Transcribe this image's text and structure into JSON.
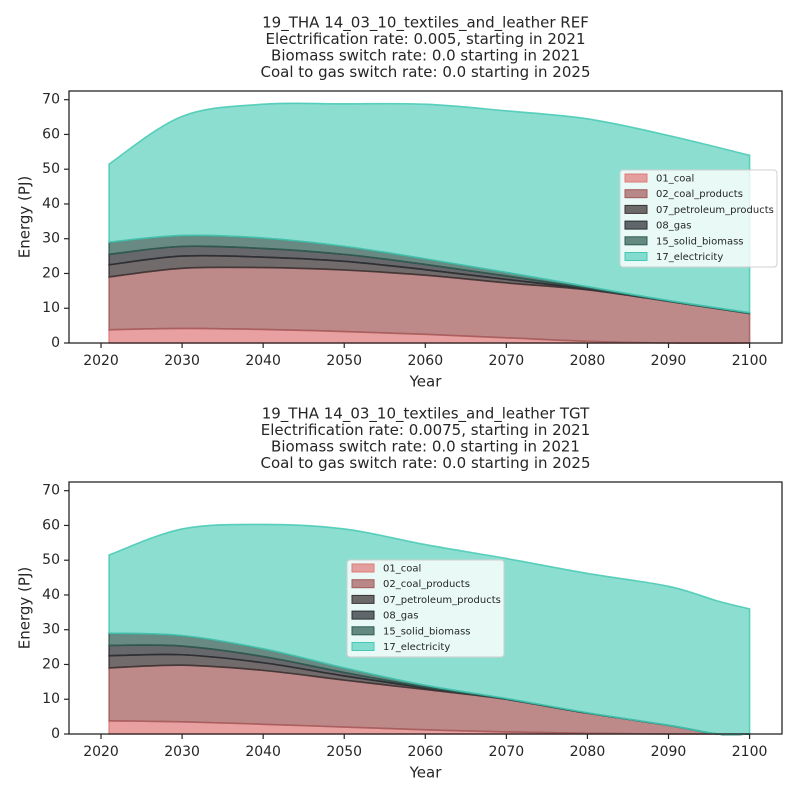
{
  "figure": {},
  "colors": {
    "01_coal": "#e07b7b",
    "02_coal_products": "#a35c5c",
    "07_petroleum_products": "#3a3232",
    "08_gas": "#2b2e33",
    "15_solid_biomass": "#2f5d52",
    "17_electricity": "#45c9b4"
  },
  "chart_data": [
    {
      "type": "area",
      "stacked": true,
      "title_lines": [
        "19_THA 14_03_10_textiles_and_leather REF",
        "Electrification rate: 0.005, starting in 2021",
        "Biomass switch rate: 0.0 starting in 2021",
        "Coal to gas switch rate: 0.0 starting in 2025"
      ],
      "xlabel": "Year",
      "ylabel": "Energy (PJ)",
      "xlim": [
        2021,
        2100
      ],
      "ylim": [
        0,
        72.5
      ],
      "xticks": [
        2020,
        2030,
        2040,
        2050,
        2060,
        2070,
        2080,
        2090,
        2100
      ],
      "yticks": [
        0,
        10,
        20,
        30,
        40,
        50,
        60,
        70
      ],
      "legend_position": "right",
      "x": [
        2021,
        2030,
        2040,
        2050,
        2060,
        2070,
        2080,
        2090,
        2100
      ],
      "series": [
        {
          "name": "01_coal",
          "values": [
            3.8,
            4.2,
            3.9,
            3.3,
            2.5,
            1.5,
            0.5,
            0,
            0
          ]
        },
        {
          "name": "02_coal_products",
          "values": [
            15.2,
            17.3,
            17.8,
            17.7,
            17.0,
            15.8,
            14.8,
            12.0,
            8.5
          ]
        },
        {
          "name": "07_petroleum_products",
          "values": [
            3.5,
            3.5,
            3.0,
            2.5,
            1.6,
            1.0,
            0.2,
            0,
            0
          ]
        },
        {
          "name": "08_gas",
          "values": [
            3.0,
            2.8,
            2.5,
            2.0,
            1.5,
            1.0,
            0.3,
            0,
            0
          ]
        },
        {
          "name": "15_solid_biomass",
          "values": [
            3.5,
            3.1,
            3.0,
            2.3,
            1.6,
            1.0,
            0.4,
            0.2,
            0.2
          ]
        },
        {
          "name": "17_electricity",
          "values": [
            22.5,
            34.3,
            38.5,
            41.0,
            44.5,
            46.5,
            48.3,
            47.5,
            45.3
          ]
        }
      ]
    },
    {
      "type": "area",
      "stacked": true,
      "title_lines": [
        "19_THA 14_03_10_textiles_and_leather TGT",
        "Electrification rate: 0.0075, starting in 2021",
        "Biomass switch rate: 0.0 starting in 2021",
        "Coal to gas switch rate: 0.0 starting in 2025"
      ],
      "xlabel": "Year",
      "ylabel": "Energy (PJ)",
      "xlim": [
        2021,
        2100
      ],
      "ylim": [
        0,
        72.5
      ],
      "xticks": [
        2020,
        2030,
        2040,
        2050,
        2060,
        2070,
        2080,
        2090,
        2100
      ],
      "yticks": [
        0,
        10,
        20,
        30,
        40,
        50,
        60,
        70
      ],
      "legend_position": "center",
      "x": [
        2021,
        2030,
        2040,
        2050,
        2060,
        2070,
        2080,
        2090,
        2096,
        2100
      ],
      "series": [
        {
          "name": "01_coal",
          "values": [
            3.8,
            3.5,
            2.8,
            2.0,
            1.2,
            0.6,
            0.2,
            0,
            0,
            0
          ]
        },
        {
          "name": "02_coal_products",
          "values": [
            15.2,
            16.3,
            15.5,
            13.5,
            11.6,
            9.4,
            5.8,
            2.5,
            0,
            0
          ]
        },
        {
          "name": "07_petroleum_products",
          "values": [
            3.5,
            3.0,
            2.2,
            1.2,
            0.4,
            0,
            0,
            0,
            0,
            0
          ]
        },
        {
          "name": "08_gas",
          "values": [
            3.0,
            2.5,
            1.8,
            1.0,
            0.3,
            0,
            0,
            0,
            0,
            0
          ]
        },
        {
          "name": "15_solid_biomass",
          "values": [
            3.5,
            3.0,
            2.2,
            1.3,
            0.5,
            0.2,
            0.1,
            0,
            0,
            0
          ]
        },
        {
          "name": "17_electricity",
          "values": [
            22.5,
            30.7,
            35.8,
            40.0,
            40.5,
            40.3,
            40.1,
            40.0,
            38.3,
            36.0
          ]
        }
      ]
    }
  ]
}
